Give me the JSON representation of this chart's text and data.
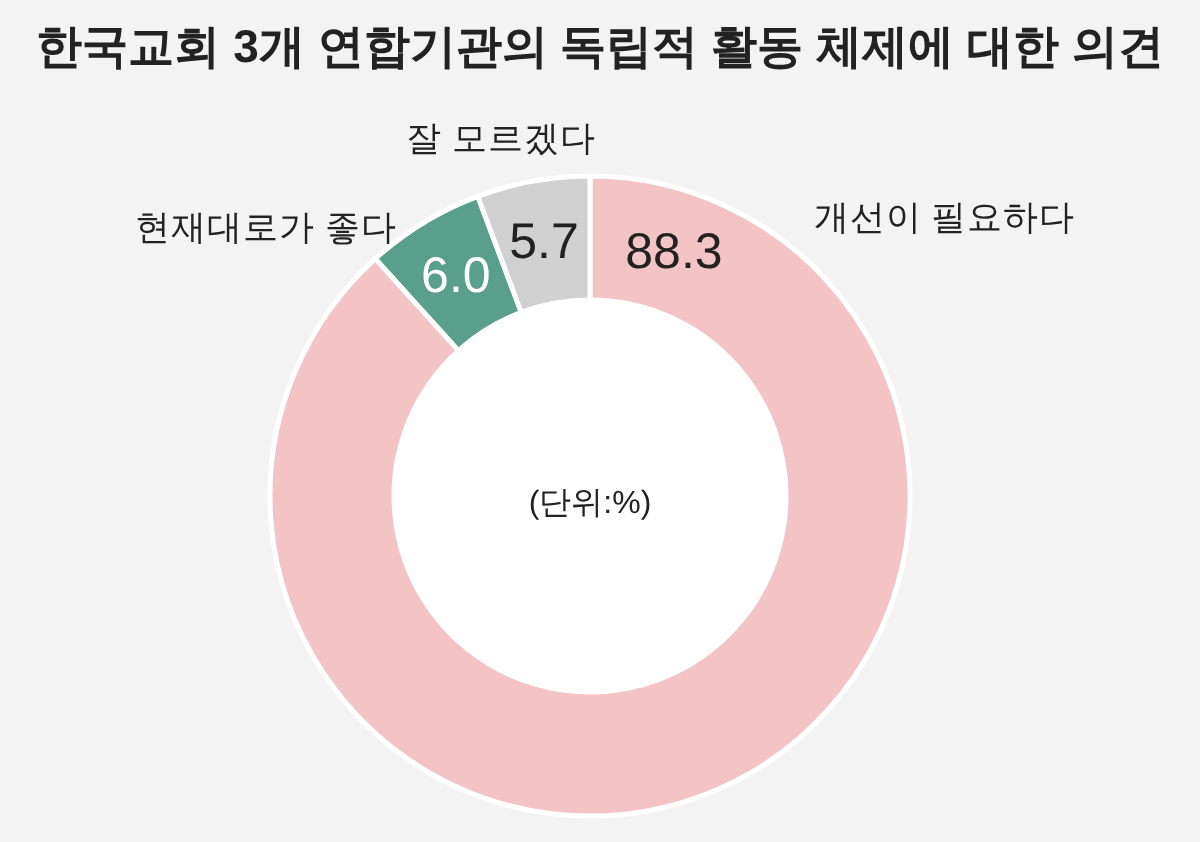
{
  "chart_data": {
    "type": "donut",
    "title": "한국교회 3개 연합기관의 독립적 활동 체제에 대한 의견",
    "categories": [
      "개선이 필요하다",
      "현재대로가 좋다",
      "잘 모르겠다"
    ],
    "values": [
      88.3,
      6.0,
      5.7
    ],
    "colors": [
      "#f4c3c5",
      "#5a9f8b",
      "#d0d0d0"
    ],
    "value_labels": [
      "88.3",
      "6.0",
      "5.7"
    ],
    "annotations": [
      "(단위:%)"
    ]
  }
}
